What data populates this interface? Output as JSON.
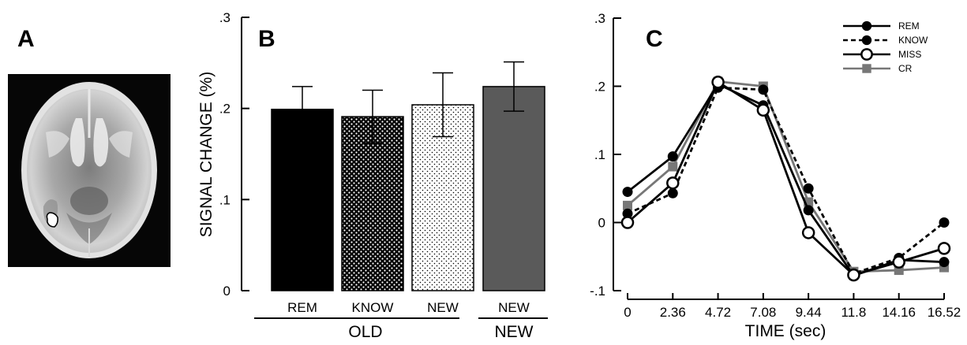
{
  "panels": {
    "a_label": "A",
    "b_label": "B",
    "c_label": "C"
  },
  "chart_data": [
    {
      "id": "B",
      "type": "bar",
      "ylabel": "SIGNAL CHANGE (%)",
      "ylim": [
        0,
        0.3
      ],
      "yticks": [
        0,
        0.1,
        0.2,
        0.3
      ],
      "ytick_labels": [
        "0",
        ".1",
        ".2",
        ".3"
      ],
      "categories": [
        "REM",
        "KNOW",
        "NEW",
        "NEW"
      ],
      "values": [
        0.199,
        0.191,
        0.204,
        0.224
      ],
      "errors": [
        0.025,
        0.029,
        0.035,
        0.027
      ],
      "fills": [
        "solid-black",
        "dense-dots",
        "sparse-dots",
        "solid-gray"
      ],
      "colors": {
        "black": "#000000",
        "gray": "#5a5a5a"
      },
      "groups": [
        {
          "label": "OLD",
          "members": [
            0,
            1,
            2
          ]
        },
        {
          "label": "NEW",
          "members": [
            3
          ]
        }
      ],
      "grid": false
    },
    {
      "id": "C",
      "type": "line",
      "xlabel": "TIME (sec)",
      "x": [
        0,
        2.36,
        4.72,
        7.08,
        9.44,
        11.8,
        14.16,
        16.52
      ],
      "xtick_labels": [
        "0",
        "2.36",
        "4.72",
        "7.08",
        "9.44",
        "11.8",
        "14.16",
        "16.52"
      ],
      "ylim": [
        -0.1,
        0.3
      ],
      "yticks": [
        -0.1,
        0,
        0.1,
        0.2,
        0.3
      ],
      "ytick_labels": [
        "-.1",
        "0",
        ".1",
        ".2",
        ".3"
      ],
      "legend_position": "top-right",
      "grid": false,
      "series": [
        {
          "name": "REM",
          "color": "#000000",
          "dash": "solid",
          "marker": "filled-circle",
          "values": [
            0.045,
            0.097,
            0.203,
            0.172,
            0.018,
            -0.078,
            -0.055,
            -0.058
          ]
        },
        {
          "name": "KNOW",
          "color": "#000000",
          "dash": "dashed",
          "marker": "filled-circle",
          "values": [
            0.013,
            0.043,
            0.198,
            0.195,
            0.05,
            -0.075,
            -0.052,
            0.0
          ]
        },
        {
          "name": "MISS",
          "color": "#000000",
          "dash": "solid",
          "marker": "open-circle",
          "values": [
            0.0,
            0.058,
            0.206,
            0.165,
            -0.015,
            -0.077,
            -0.058,
            -0.038
          ]
        },
        {
          "name": "CR",
          "color": "#777777",
          "dash": "solid",
          "marker": "filled-square",
          "values": [
            0.025,
            0.082,
            0.207,
            0.2,
            0.03,
            -0.072,
            -0.07,
            -0.066
          ]
        }
      ]
    }
  ]
}
